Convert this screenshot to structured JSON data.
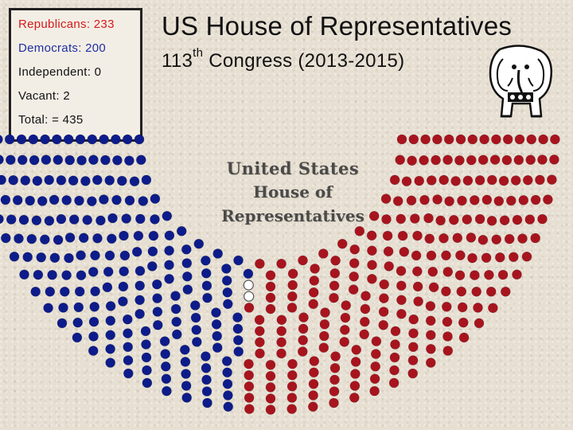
{
  "legend": {
    "republicans": "Republicans: 233",
    "democrats": "Democrats: 200",
    "independent": "Independent: 0",
    "vacant": "Vacant: 2",
    "total": "Total: = 435"
  },
  "header": {
    "title": "US House of Representatives",
    "subtitle_number": "113",
    "subtitle_suffix": "th",
    "subtitle_rest": " Congress (2013-2015)"
  },
  "emblem": {
    "line1": "United States",
    "line2": "House of Representatives"
  },
  "seats": {
    "democrats": 200,
    "vacant": 2,
    "republicans": 233
  },
  "colors": {
    "democrat": "#0d1c8a",
    "republican": "#a8141e",
    "vacant": "#ffffff",
    "republican_text": "#d31a1a",
    "democrat_text": "#1f2ea3"
  },
  "icons": {
    "mascot": "republican-elephant-icon"
  }
}
